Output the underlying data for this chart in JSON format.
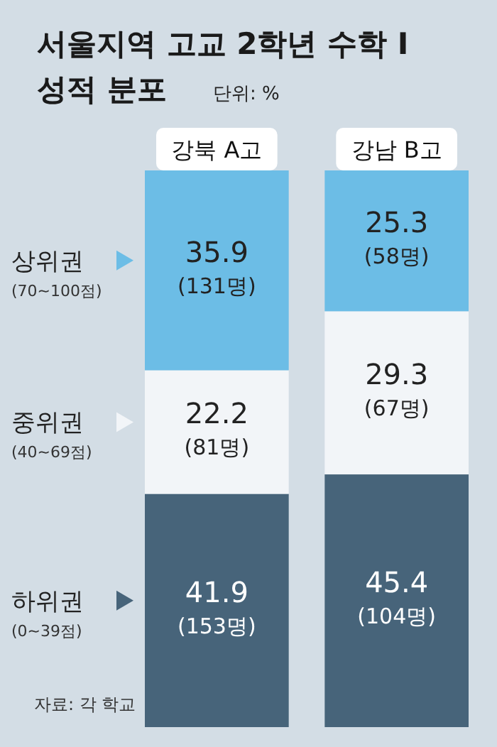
{
  "chart_data": {
    "type": "bar",
    "stacked": true,
    "title": "서울지역 고교 2학년 수학 I 성적 분포",
    "subtitle": "단위: %",
    "categories": [
      "강북 A고",
      "강남 B고"
    ],
    "series": [
      {
        "name": "하위권 (0~39점)",
        "color": "#47647a",
        "values": [
          41.9,
          45.4
        ],
        "value_labels": [
          "41.9 (153명)",
          "45.4 (104명)"
        ]
      },
      {
        "name": "중위권 (40~69점)",
        "color": "#f2f5f8",
        "values": [
          22.2,
          29.3
        ],
        "value_labels": [
          "22.2 (81명)",
          "29.3 (67명)"
        ]
      },
      {
        "name": "상위권 (70~100점)",
        "color": "#6cbde6",
        "values": [
          35.9,
          25.3
        ],
        "value_labels": [
          "35.9 (131명)",
          "25.3 (58명)"
        ]
      }
    ],
    "legend": "left",
    "annotations": [
      "자료: 각 학교"
    ]
  }
}
